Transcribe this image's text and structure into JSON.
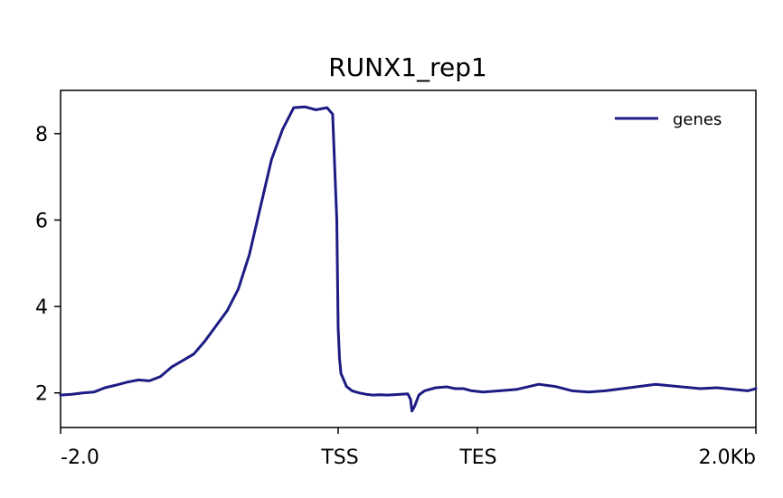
{
  "chart_data": {
    "type": "line",
    "title": "RUNX1_rep1",
    "xlabel": "",
    "ylabel": "",
    "x_ticks": [
      "-2.0",
      "TSS",
      "TES",
      "2.0Kb"
    ],
    "y_ticks": [
      2,
      4,
      6,
      8
    ],
    "ylim": [
      1.2,
      9.0
    ],
    "grid": false,
    "legend_position": "top-right",
    "series": [
      {
        "name": "genes",
        "color": "#1c1c84",
        "x": [
          0,
          0.04,
          0.08,
          0.12,
          0.16,
          0.2,
          0.24,
          0.28,
          0.32,
          0.36,
          0.4,
          0.44,
          0.48,
          0.52,
          0.56,
          0.6,
          0.64,
          0.68,
          0.72,
          0.76,
          0.8,
          0.84,
          0.88,
          0.92,
          0.96,
          0.98,
          0.995,
          1.0,
          1.01,
          1.02,
          1.04,
          1.06,
          1.1,
          1.15,
          1.2,
          1.25,
          1.3,
          1.35,
          1.4,
          1.45,
          1.5,
          1.52,
          1.53,
          1.55,
          1.58,
          1.62,
          1.7,
          1.78,
          1.84,
          1.9,
          1.96,
          2.02,
          2.08,
          2.14,
          2.22,
          2.28,
          2.34,
          2.4,
          2.46,
          2.52,
          2.58,
          2.64,
          2.72,
          2.8,
          2.86,
          2.92,
          2.97,
          3.0
        ],
        "values": [
          1.95,
          1.97,
          2.0,
          2.02,
          2.12,
          2.18,
          2.25,
          2.3,
          2.28,
          2.38,
          2.6,
          2.75,
          2.9,
          3.2,
          3.55,
          3.9,
          4.4,
          5.2,
          6.3,
          7.4,
          8.1,
          8.6,
          8.62,
          8.55,
          8.6,
          8.45,
          6.0,
          3.5,
          2.8,
          2.45,
          2.3,
          2.15,
          2.05,
          2.0,
          1.97,
          1.95,
          1.96,
          1.95,
          1.96,
          1.97,
          1.98,
          1.85,
          1.58,
          1.7,
          1.95,
          2.05,
          2.12,
          2.14,
          2.1,
          2.1,
          2.05,
          2.02,
          2.05,
          2.08,
          2.2,
          2.15,
          2.05,
          2.02,
          2.05,
          2.1,
          2.15,
          2.2,
          2.15,
          2.1,
          2.12,
          2.08,
          2.05,
          2.1
        ]
      }
    ]
  }
}
